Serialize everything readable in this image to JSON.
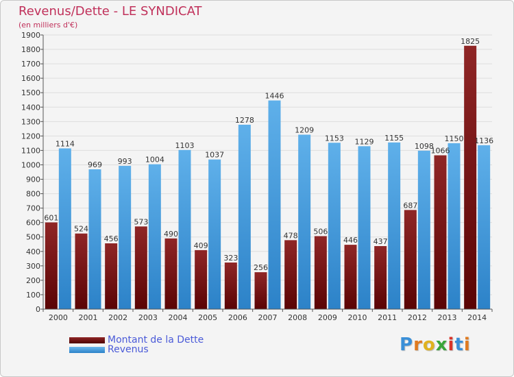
{
  "title": "Revenus/Dette - LE SYNDICAT",
  "subtitle": "(en milliers d'€)",
  "colors": {
    "debt": "#7a1414",
    "revenue": "#3a95da",
    "title": "#c0305a",
    "legend_text": "#4a5ad8"
  },
  "logo": "Proxiti",
  "chart_data": {
    "type": "bar",
    "title": "Revenus/Dette - LE SYNDICAT",
    "subtitle": "(en milliers d'€)",
    "categories": [
      "2000",
      "2001",
      "2002",
      "2003",
      "2004",
      "2005",
      "2006",
      "2007",
      "2008",
      "2009",
      "2010",
      "2011",
      "2012",
      "2013",
      "2014"
    ],
    "series": [
      {
        "name": "Montant de la Dette",
        "values": [
          601,
          524,
          456,
          573,
          490,
          409,
          323,
          256,
          478,
          506,
          446,
          437,
          687,
          1066,
          1825
        ],
        "labels": [
          "601",
          "524",
          "456",
          "573",
          "490",
          "409",
          "323",
          "256",
          "478",
          "506",
          "446",
          "437",
          "687",
          "1066",
          "1825"
        ]
      },
      {
        "name": "Revenus",
        "values": [
          1114,
          969,
          993,
          1004,
          1103,
          1037,
          1278,
          1446,
          1209,
          1153,
          1129,
          1155,
          1098,
          1150,
          1136
        ],
        "labels": [
          "1114",
          "969",
          "993",
          "1004",
          "1103",
          "1037",
          "1278",
          "1446",
          "1209",
          "1153",
          "1129",
          "1155",
          "1098",
          "1150",
          "1136"
        ]
      }
    ],
    "ylim": [
      0,
      1900
    ],
    "yticks": [
      0,
      100,
      200,
      300,
      400,
      500,
      600,
      700,
      800,
      900,
      1000,
      1100,
      1200,
      1300,
      1400,
      1500,
      1600,
      1700,
      1800,
      1900
    ],
    "grid": true,
    "legend": "bottom-left"
  }
}
